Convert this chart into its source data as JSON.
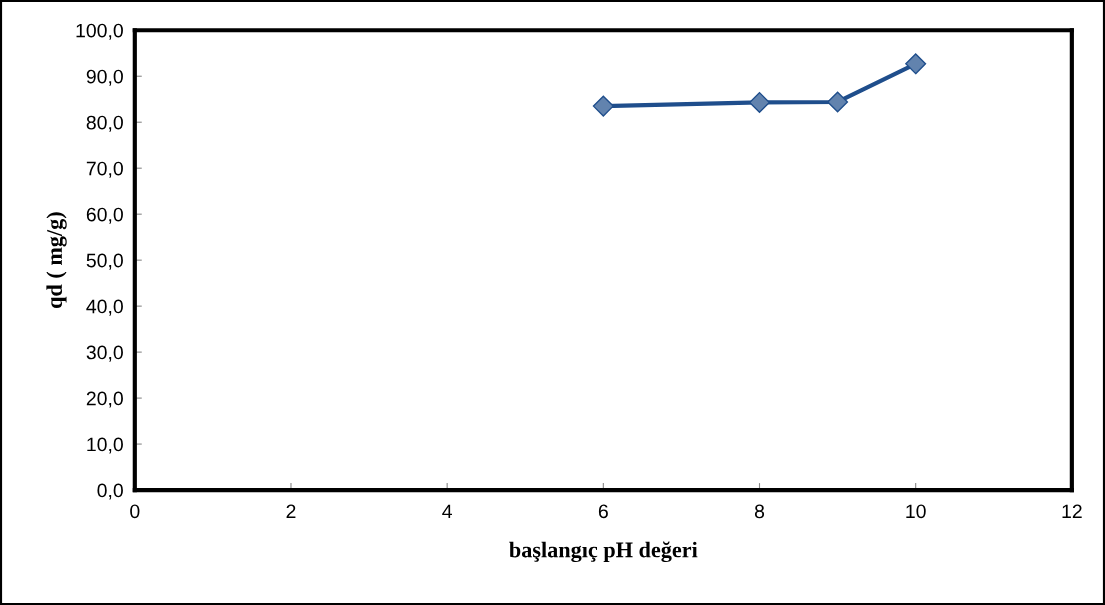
{
  "chart_data": {
    "type": "line",
    "xlabel": "başlangıç pH değeri",
    "ylabel": "qd ( mg/g)",
    "series": [
      {
        "color": "#1f4e8c",
        "x": [
          6,
          8,
          9,
          10
        ],
        "values": [
          83.5,
          84.3,
          84.4,
          92.7
        ]
      }
    ],
    "marker": "diamond",
    "line_style": "solid",
    "xlim": [
      0,
      12
    ],
    "xticks": [
      0,
      2,
      4,
      6,
      8,
      10,
      12
    ],
    "ylim": [
      0,
      100
    ],
    "yticks": [
      {
        "value": 0,
        "label": "0,0"
      },
      {
        "value": 10,
        "label": "10,0"
      },
      {
        "value": 20,
        "label": "20,0"
      },
      {
        "value": 30,
        "label": "30,0"
      },
      {
        "value": 40,
        "label": "40,0"
      },
      {
        "value": 50,
        "label": "50,0"
      },
      {
        "value": 60,
        "label": "60,0"
      },
      {
        "value": 70,
        "label": "70,0"
      },
      {
        "value": 80,
        "label": "80,0"
      },
      {
        "value": 90,
        "label": "90,0"
      },
      {
        "value": 100,
        "label": "100,0"
      }
    ],
    "grid": false
  }
}
